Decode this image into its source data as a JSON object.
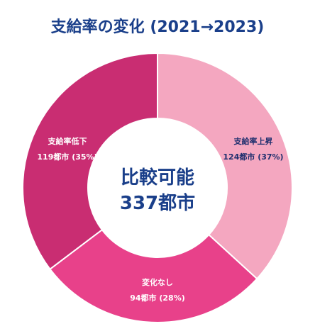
{
  "chart_data": {
    "type": "pie",
    "title": "支給率の変化 (2021→2023)",
    "center_label": [
      "比較可能",
      "337都市"
    ],
    "slices": [
      {
        "label": "支給率上昇",
        "value_text": "124都市 (37%)",
        "count": 124,
        "percent": 37,
        "color": "#f4a7c0",
        "text_color": "#1f2f6e"
      },
      {
        "label": "変化なし",
        "value_text": "94都市 (28%)",
        "count": 94,
        "percent": 28,
        "color": "#e8418a",
        "text_color": "#ffffff"
      },
      {
        "label": "支給率低下",
        "value_text": "119都市 (35%)",
        "count": 119,
        "percent": 35,
        "color": "#c92d72",
        "text_color": "#ffffff"
      }
    ],
    "center_text_color": "#1a3f8a"
  }
}
